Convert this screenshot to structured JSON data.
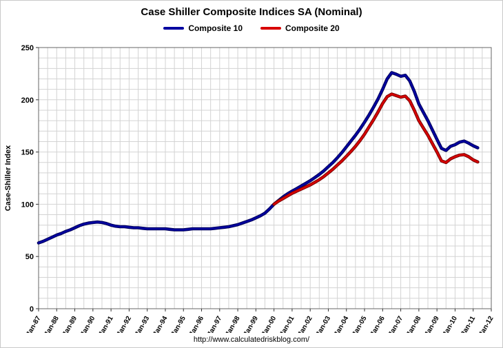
{
  "title": "Case Shiller Composite Indices SA (Nominal)",
  "footer": "http://www.calculatedriskblog.com/",
  "chart_data": {
    "type": "line",
    "title": "Case Shiller Composite Indices SA (Nominal)",
    "xlabel": "",
    "ylabel": "Case-Shiller Index",
    "ylim": [
      0,
      250
    ],
    "y_major_ticks": [
      0,
      50,
      100,
      150,
      200,
      250
    ],
    "y_minor_step": 10,
    "xlim": [
      1987,
      2012
    ],
    "x_minor_step": 0.5,
    "x_tick_labels": [
      "Jan-87",
      "Jan-88",
      "Jan-89",
      "Jan-90",
      "Jan-91",
      "Jan-92",
      "Jan-93",
      "Jan-94",
      "Jan-95",
      "Jan-96",
      "Jan-97",
      "Jan-98",
      "Jan-99",
      "Jan-00",
      "Jan-01",
      "Jan-02",
      "Jan-03",
      "Jan-04",
      "Jan-05",
      "Jan-06",
      "Jan-07",
      "Jan-08",
      "Jan-09",
      "Jan-10",
      "Jan-11",
      "Jan-12"
    ],
    "grid": true,
    "legend_position": "top",
    "gridline_color": "#d3d3d3",
    "axis_color": "#666666",
    "series": [
      {
        "name": "Composite 10",
        "color": "#0000a0",
        "x_start": 1987.0,
        "x_step": 0.25,
        "values": [
          63,
          64.5,
          66.5,
          68.5,
          70.5,
          72,
          74,
          75.5,
          77.5,
          79.5,
          81,
          82,
          82.5,
          83,
          82.5,
          81.5,
          80,
          79,
          78.5,
          78.5,
          78,
          77.5,
          77.5,
          77,
          76.5,
          76.5,
          76.5,
          76.5,
          76.5,
          76,
          75.5,
          75.5,
          75.5,
          76,
          76.5,
          76.5,
          76.5,
          76.5,
          76.5,
          77,
          77.5,
          78,
          78.5,
          79.5,
          80.5,
          82,
          83.5,
          85,
          87,
          89,
          91.5,
          95.5,
          100,
          103.5,
          107,
          110,
          112.5,
          115,
          117.5,
          120,
          122.5,
          125.5,
          128.5,
          132,
          136,
          140,
          144.5,
          149.5,
          155,
          160.5,
          166,
          172,
          178.5,
          185.5,
          193,
          201,
          210,
          220,
          226,
          224.5,
          222.5,
          223.5,
          218,
          208,
          196,
          188,
          180,
          171,
          162,
          153.5,
          151.5,
          155.5,
          157,
          159.5,
          160.5,
          158.5,
          156,
          154
        ]
      },
      {
        "name": "Composite 20",
        "color": "#d80000",
        "x_start": 2000.0,
        "x_step": 0.25,
        "values": [
          100,
          103,
          105.5,
          108,
          110.5,
          112.5,
          114.5,
          116.5,
          118.5,
          121,
          123.5,
          126.5,
          130,
          133.5,
          137.5,
          141.5,
          146,
          150.5,
          155.5,
          161,
          167,
          174,
          181,
          188.5,
          196.5,
          203,
          205.5,
          204,
          202.5,
          203.5,
          199,
          190,
          180,
          173,
          166,
          158,
          150,
          141.5,
          140,
          143.5,
          145.5,
          147,
          147.5,
          145.5,
          142.5,
          140.5
        ]
      }
    ]
  }
}
